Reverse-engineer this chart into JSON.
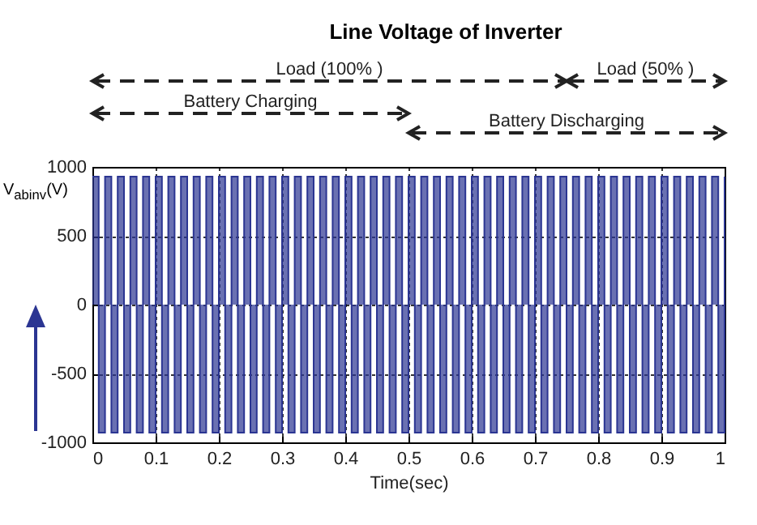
{
  "chart_data": {
    "type": "step",
    "title": "Line Voltage of Inverter",
    "xlabel": "Time(sec)",
    "ylabel": "V$_{abinv}$(V)",
    "annotations": [
      "Load (100% )",
      "Load (50% )",
      "Battery Charging",
      "Battery Discharging"
    ],
    "x": [
      0,
      0.01,
      0.02,
      0.03,
      0.04,
      0.05,
      0.06,
      0.07,
      0.08,
      0.09,
      0.1,
      0.11,
      0.12,
      0.13,
      0.14,
      0.15,
      0.16,
      0.17,
      0.18,
      0.19,
      0.2,
      0.21,
      0.22,
      0.23,
      0.24,
      0.25,
      0.26,
      0.27,
      0.28,
      0.29,
      0.3,
      0.31,
      0.32,
      0.33,
      0.34,
      0.35,
      0.36,
      0.37,
      0.38,
      0.39,
      0.4,
      0.41,
      0.42,
      0.43,
      0.44,
      0.45,
      0.46,
      0.47,
      0.48,
      0.49,
      0.5,
      0.51,
      0.52,
      0.53,
      0.54,
      0.55,
      0.56,
      0.57,
      0.58,
      0.59,
      0.6,
      0.61,
      0.62,
      0.63,
      0.64,
      0.65,
      0.66,
      0.67,
      0.68,
      0.69,
      0.7,
      0.71,
      0.72,
      0.73,
      0.74,
      0.75,
      0.76,
      0.77,
      0.78,
      0.79,
      0.8,
      0.81,
      0.82,
      0.83,
      0.84,
      0.85,
      0.86,
      0.87,
      0.88,
      0.89,
      0.9,
      0.91,
      0.92,
      0.93,
      0.94,
      0.95,
      0.96,
      0.97,
      0.98,
      0.99,
      1
    ],
    "series": [
      {
        "color": "#2b3592",
        "values": [
          930,
          -930,
          930,
          -930,
          930,
          -930,
          930,
          -930,
          930,
          -930,
          930,
          -930,
          930,
          -930,
          930,
          -930,
          930,
          -930,
          930,
          -930,
          930,
          -930,
          930,
          -930,
          930,
          -930,
          930,
          -930,
          930,
          -930,
          930,
          -930,
          930,
          -930,
          930,
          -930,
          930,
          -930,
          930,
          -930,
          930,
          -930,
          930,
          -930,
          930,
          -930,
          930,
          -930,
          930,
          -930,
          930,
          -930,
          930,
          -930,
          930,
          -930,
          930,
          -930,
          930,
          -930,
          930,
          -930,
          930,
          -930,
          930,
          -930,
          930,
          -930,
          930,
          -930,
          930,
          -930,
          930,
          -930,
          930,
          -930,
          930,
          -930,
          930,
          -930,
          930,
          -930,
          930,
          -930,
          930,
          -930,
          930,
          -930,
          930,
          -930,
          930,
          -930,
          930,
          -930,
          930,
          -930,
          930,
          -930,
          930,
          -930,
          930
        ]
      }
    ],
    "xlim": [
      0,
      1
    ],
    "xticks": [
      0,
      0.1,
      0.2,
      0.3,
      0.4,
      0.5,
      0.6,
      0.7,
      0.8,
      0.9,
      1
    ],
    "ylim": [
      -1000,
      1000
    ],
    "yticks": [
      -1000,
      -500,
      0,
      500,
      1000
    ],
    "grid": true
  }
}
